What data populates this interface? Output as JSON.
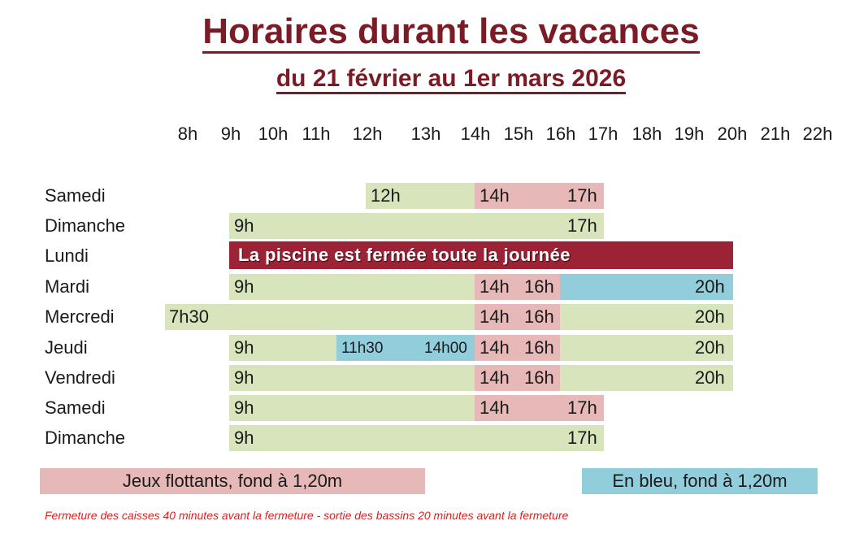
{
  "title": "Horaires durant les vacances",
  "subtitle": "du 21 février au 1er mars 2026",
  "colors": {
    "title": "#7b1b26",
    "green": "#d8e4bc",
    "pink": "#e6b8b7",
    "blue": "#92cddc",
    "closed": "#9b2335",
    "note": "#e02020"
  },
  "hours": [
    "8h",
    "9h",
    "10h",
    "11h",
    "12h",
    "13h",
    "14h",
    "15h",
    "16h",
    "17h",
    "18h",
    "19h",
    "20h",
    "21h",
    "22h"
  ],
  "days": [
    {
      "name": "Samedi",
      "labels": [
        "12h",
        "14h",
        "17h"
      ]
    },
    {
      "name": "Dimanche",
      "labels": [
        "9h",
        "17h"
      ]
    },
    {
      "name": "Lundi",
      "closed_text": "La piscine est fermée toute la journée"
    },
    {
      "name": "Mardi",
      "labels": [
        "9h",
        "14h",
        "16h",
        "20h"
      ]
    },
    {
      "name": "Mercredi",
      "labels": [
        "7h30",
        "14h",
        "16h",
        "20h"
      ]
    },
    {
      "name": "Jeudi",
      "labels": [
        "9h",
        "11h30",
        "14h00",
        "14h",
        "16h",
        "20h"
      ]
    },
    {
      "name": "Vendredi",
      "labels": [
        "9h",
        "14h",
        "16h",
        "20h"
      ]
    },
    {
      "name": "Samedi",
      "labels": [
        "9h",
        "14h",
        "17h"
      ]
    },
    {
      "name": "Dimanche",
      "labels": [
        "9h",
        "17h"
      ]
    }
  ],
  "legend": {
    "pink": "Jeux flottants, fond à 1,20m",
    "blue": "En bleu, fond à 1,20m"
  },
  "note": "Fermeture des caisses 40 minutes avant la fermeture - sortie des bassins 20 minutes avant la fermeture"
}
